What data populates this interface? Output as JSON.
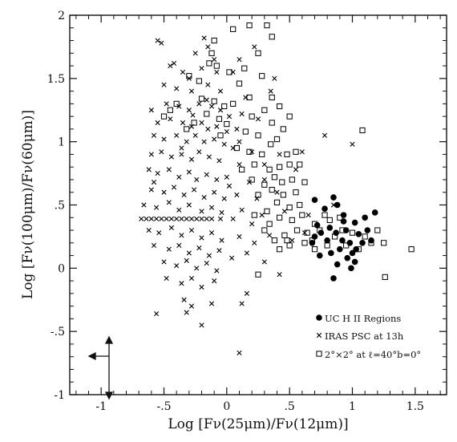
{
  "chart_data": {
    "type": "scatter",
    "xlabel": "Log [Fν(25μm)/Fν(12μm)]",
    "ylabel": "Log [Fν(100μm)/Fν(60μm)]",
    "xlim": [
      -1.25,
      1.75
    ],
    "ylim": [
      -1.0,
      2.0
    ],
    "xticks": [
      {
        "value": -1.0,
        "label": "-1"
      },
      {
        "value": -0.5,
        "label": "-.5"
      },
      {
        "value": 0.0,
        "label": "0"
      },
      {
        "value": 0.5,
        "label": ".5"
      },
      {
        "value": 1.0,
        "label": "1"
      },
      {
        "value": 1.5,
        "label": "1.5"
      }
    ],
    "yticks": [
      {
        "value": -1.0,
        "label": "-1"
      },
      {
        "value": -0.5,
        "label": "-.5"
      },
      {
        "value": 0.0,
        "label": "0"
      },
      {
        "value": 0.5,
        "label": ".5"
      },
      {
        "value": 1.0,
        "label": "1"
      },
      {
        "value": 1.5,
        "label": "1.5"
      },
      {
        "value": 2.0,
        "label": "2"
      }
    ],
    "grid": false,
    "legend_position": "bottom-right",
    "series": [
      {
        "name": "UC H II Regions",
        "marker": "filled-circle",
        "color": "#000000",
        "points": [
          [
            0.7,
            0.54
          ],
          [
            0.78,
            0.47
          ],
          [
            0.85,
            0.56
          ],
          [
            0.88,
            0.5
          ],
          [
            0.93,
            0.37
          ],
          [
            0.72,
            0.34
          ],
          [
            0.82,
            0.32
          ],
          [
            0.95,
            0.3
          ],
          [
            1.02,
            0.36
          ],
          [
            1.1,
            0.4
          ],
          [
            1.18,
            0.44
          ],
          [
            0.75,
            0.28
          ],
          [
            0.8,
            0.22
          ],
          [
            0.87,
            0.28
          ],
          [
            0.92,
            0.22
          ],
          [
            0.98,
            0.2
          ],
          [
            1.05,
            0.27
          ],
          [
            1.12,
            0.3
          ],
          [
            1.15,
            0.22
          ],
          [
            0.7,
            0.25
          ],
          [
            0.74,
            0.1
          ],
          [
            0.83,
            0.12
          ],
          [
            0.9,
            0.15
          ],
          [
            0.96,
            0.08
          ],
          [
            1.03,
            0.15
          ],
          [
            1.08,
            0.2
          ],
          [
            0.88,
            0.03
          ],
          [
            0.99,
            0.0
          ],
          [
            1.02,
            0.05
          ],
          [
            0.85,
            -0.08
          ],
          [
            0.68,
            0.2
          ],
          [
            0.93,
            0.42
          ],
          [
            1.0,
            0.12
          ]
        ]
      },
      {
        "name": "IRAS PSC at 13h",
        "marker": "cross",
        "color": "#000000",
        "points": [
          [
            -0.55,
            1.8
          ],
          [
            -0.52,
            1.78
          ],
          [
            -0.18,
            1.82
          ],
          [
            -0.15,
            1.75
          ],
          [
            -0.25,
            1.7
          ],
          [
            -0.1,
            1.65
          ],
          [
            0.22,
            1.75
          ],
          [
            0.1,
            1.65
          ],
          [
            -0.45,
            1.6
          ],
          [
            -0.35,
            1.55
          ],
          [
            -0.3,
            1.5
          ],
          [
            -0.2,
            1.58
          ],
          [
            -0.08,
            1.55
          ],
          [
            0.05,
            1.55
          ],
          [
            0.38,
            1.5
          ],
          [
            -0.5,
            1.45
          ],
          [
            -0.4,
            1.42
          ],
          [
            -0.28,
            1.4
          ],
          [
            -0.15,
            1.45
          ],
          [
            -0.05,
            1.4
          ],
          [
            0.15,
            1.35
          ],
          [
            0.35,
            1.4
          ],
          [
            -0.6,
            1.25
          ],
          [
            -0.48,
            1.3
          ],
          [
            -0.38,
            1.28
          ],
          [
            -0.3,
            1.25
          ],
          [
            -0.22,
            1.3
          ],
          [
            -0.12,
            1.28
          ],
          [
            -0.05,
            1.25
          ],
          [
            0.02,
            1.2
          ],
          [
            0.12,
            1.22
          ],
          [
            0.25,
            1.18
          ],
          [
            -0.55,
            1.15
          ],
          [
            -0.45,
            1.18
          ],
          [
            -0.35,
            1.15
          ],
          [
            -0.28,
            1.12
          ],
          [
            -0.2,
            1.15
          ],
          [
            -0.15,
            1.1
          ],
          [
            -0.08,
            1.12
          ],
          [
            0.0,
            1.08
          ],
          [
            0.08,
            1.1
          ],
          [
            -0.58,
            1.05
          ],
          [
            -0.5,
            1.02
          ],
          [
            -0.4,
            1.05
          ],
          [
            -0.32,
            1.0
          ],
          [
            -0.25,
            1.05
          ],
          [
            -0.18,
            1.0
          ],
          [
            -0.1,
            1.02
          ],
          [
            -0.02,
            0.98
          ],
          [
            0.05,
            0.95
          ],
          [
            0.2,
            0.92
          ],
          [
            0.42,
            0.9
          ],
          [
            0.6,
            0.92
          ],
          [
            0.78,
            1.05
          ],
          [
            1.0,
            0.98
          ],
          [
            -0.6,
            0.9
          ],
          [
            -0.52,
            0.92
          ],
          [
            -0.44,
            0.88
          ],
          [
            -0.36,
            0.9
          ],
          [
            -0.28,
            0.86
          ],
          [
            -0.22,
            0.92
          ],
          [
            -0.14,
            0.88
          ],
          [
            -0.06,
            0.85
          ],
          [
            0.1,
            0.82
          ],
          [
            -0.62,
            0.78
          ],
          [
            -0.55,
            0.75
          ],
          [
            -0.46,
            0.78
          ],
          [
            -0.38,
            0.72
          ],
          [
            -0.3,
            0.76
          ],
          [
            -0.24,
            0.7
          ],
          [
            -0.16,
            0.74
          ],
          [
            -0.08,
            0.7
          ],
          [
            0.0,
            0.72
          ],
          [
            0.18,
            0.68
          ],
          [
            0.3,
            0.7
          ],
          [
            -0.6,
            0.62
          ],
          [
            -0.5,
            0.6
          ],
          [
            -0.42,
            0.64
          ],
          [
            -0.34,
            0.58
          ],
          [
            -0.26,
            0.62
          ],
          [
            -0.18,
            0.56
          ],
          [
            -0.1,
            0.6
          ],
          [
            -0.02,
            0.55
          ],
          [
            0.08,
            0.58
          ],
          [
            0.24,
            0.55
          ],
          [
            0.4,
            0.6
          ],
          [
            -0.66,
            0.5
          ],
          [
            -0.56,
            0.48
          ],
          [
            -0.46,
            0.52
          ],
          [
            -0.38,
            0.46
          ],
          [
            -0.3,
            0.5
          ],
          [
            -0.2,
            0.45
          ],
          [
            -0.12,
            0.48
          ],
          [
            -0.04,
            0.44
          ],
          [
            0.12,
            0.46
          ],
          [
            0.28,
            0.42
          ],
          [
            0.46,
            0.45
          ],
          [
            -0.68,
            0.39
          ],
          [
            -0.64,
            0.39
          ],
          [
            -0.6,
            0.39
          ],
          [
            -0.56,
            0.39
          ],
          [
            -0.52,
            0.39
          ],
          [
            -0.48,
            0.39
          ],
          [
            -0.44,
            0.39
          ],
          [
            -0.4,
            0.39
          ],
          [
            -0.36,
            0.39
          ],
          [
            -0.32,
            0.39
          ],
          [
            -0.28,
            0.39
          ],
          [
            -0.24,
            0.39
          ],
          [
            -0.2,
            0.39
          ],
          [
            -0.16,
            0.39
          ],
          [
            -0.12,
            0.39
          ],
          [
            -0.05,
            0.39
          ],
          [
            0.05,
            0.39
          ],
          [
            -0.62,
            0.3
          ],
          [
            -0.54,
            0.28
          ],
          [
            -0.44,
            0.32
          ],
          [
            -0.36,
            0.26
          ],
          [
            -0.28,
            0.3
          ],
          [
            -0.2,
            0.24
          ],
          [
            -0.12,
            0.28
          ],
          [
            -0.04,
            0.22
          ],
          [
            0.1,
            0.25
          ],
          [
            0.22,
            0.2
          ],
          [
            0.34,
            0.26
          ],
          [
            0.52,
            0.22
          ],
          [
            0.62,
            0.28
          ],
          [
            -0.58,
            0.18
          ],
          [
            -0.46,
            0.15
          ],
          [
            -0.38,
            0.18
          ],
          [
            -0.3,
            0.12
          ],
          [
            -0.22,
            0.16
          ],
          [
            -0.14,
            0.1
          ],
          [
            -0.06,
            0.14
          ],
          [
            0.04,
            0.08
          ],
          [
            0.16,
            0.12
          ],
          [
            -0.5,
            0.05
          ],
          [
            -0.4,
            0.02
          ],
          [
            -0.32,
            0.06
          ],
          [
            -0.24,
            0.0
          ],
          [
            -0.16,
            0.04
          ],
          [
            -0.08,
            -0.02
          ],
          [
            0.3,
            0.05
          ],
          [
            -0.48,
            -0.08
          ],
          [
            -0.36,
            -0.12
          ],
          [
            -0.28,
            -0.08
          ],
          [
            -0.2,
            -0.15
          ],
          [
            -0.1,
            -0.1
          ],
          [
            -0.34,
            -0.25
          ],
          [
            -0.28,
            -0.3
          ],
          [
            -0.12,
            -0.28
          ],
          [
            0.16,
            -0.2
          ],
          [
            0.42,
            -0.05
          ],
          [
            -0.56,
            -0.36
          ],
          [
            -0.32,
            -0.35
          ],
          [
            -0.2,
            -0.45
          ],
          [
            0.12,
            -0.28
          ],
          [
            0.1,
            -0.67
          ],
          [
            0.2,
            0.35
          ],
          [
            0.55,
            0.78
          ],
          [
            0.85,
            0.5
          ],
          [
            0.65,
            0.42
          ],
          [
            0.1,
            1.0
          ],
          [
            -0.42,
            1.62
          ],
          [
            -0.27,
            1.21
          ],
          [
            -0.16,
            1.33
          ],
          [
            -0.36,
            0.95
          ],
          [
            -0.58,
            0.68
          ],
          [
            0.02,
            0.65
          ],
          [
            0.3,
            0.82
          ]
        ]
      },
      {
        "name": "2°×2° at ℓ=40°b=0°",
        "marker": "open-square",
        "color": "#000000",
        "points": [
          [
            0.05,
            1.89
          ],
          [
            0.18,
            1.92
          ],
          [
            0.32,
            1.92
          ],
          [
            0.36,
            1.83
          ],
          [
            -0.1,
            1.8
          ],
          [
            -0.12,
            1.7
          ],
          [
            0.25,
            1.7
          ],
          [
            -0.08,
            1.6
          ],
          [
            -0.14,
            1.62
          ],
          [
            0.02,
            1.55
          ],
          [
            0.14,
            1.58
          ],
          [
            0.28,
            1.52
          ],
          [
            -0.3,
            1.52
          ],
          [
            -0.22,
            1.48
          ],
          [
            0.1,
            1.46
          ],
          [
            0.36,
            1.35
          ],
          [
            0.42,
            1.28
          ],
          [
            0.3,
            1.25
          ],
          [
            0.18,
            1.35
          ],
          [
            0.05,
            1.3
          ],
          [
            -0.02,
            1.28
          ],
          [
            -0.1,
            1.32
          ],
          [
            -0.2,
            1.34
          ],
          [
            -0.4,
            1.3
          ],
          [
            -0.45,
            1.25
          ],
          [
            -0.5,
            1.2
          ],
          [
            0.5,
            1.2
          ],
          [
            0.45,
            1.1
          ],
          [
            0.36,
            1.15
          ],
          [
            0.25,
            1.05
          ],
          [
            0.15,
            1.08
          ],
          [
            0.0,
            1.14
          ],
          [
            -0.06,
            1.18
          ],
          [
            -0.16,
            1.22
          ],
          [
            -0.26,
            1.15
          ],
          [
            -0.32,
            1.1
          ],
          [
            1.08,
            1.09
          ],
          [
            0.55,
            0.92
          ],
          [
            0.48,
            0.9
          ],
          [
            0.35,
            0.98
          ],
          [
            0.28,
            0.9
          ],
          [
            0.18,
            0.92
          ],
          [
            0.08,
            0.95
          ],
          [
            0.5,
            0.82
          ],
          [
            0.42,
            0.8
          ],
          [
            0.34,
            0.78
          ],
          [
            0.22,
            0.82
          ],
          [
            0.12,
            0.78
          ],
          [
            0.52,
            0.7
          ],
          [
            0.44,
            0.68
          ],
          [
            0.38,
            0.72
          ],
          [
            0.3,
            0.66
          ],
          [
            0.2,
            0.7
          ],
          [
            0.55,
            0.6
          ],
          [
            0.45,
            0.58
          ],
          [
            0.36,
            0.62
          ],
          [
            0.25,
            0.58
          ],
          [
            0.58,
            0.5
          ],
          [
            0.5,
            0.48
          ],
          [
            0.4,
            0.52
          ],
          [
            0.32,
            0.45
          ],
          [
            0.6,
            0.42
          ],
          [
            0.52,
            0.38
          ],
          [
            0.42,
            0.4
          ],
          [
            0.34,
            0.35
          ],
          [
            0.7,
            0.35
          ],
          [
            0.64,
            0.28
          ],
          [
            0.56,
            0.3
          ],
          [
            0.46,
            0.26
          ],
          [
            0.38,
            0.22
          ],
          [
            0.62,
            0.2
          ],
          [
            0.5,
            0.18
          ],
          [
            0.42,
            0.15
          ],
          [
            0.82,
            0.38
          ],
          [
            0.78,
            0.42
          ],
          [
            0.9,
            0.4
          ],
          [
            0.92,
            0.3
          ],
          [
            0.74,
            0.3
          ],
          [
            0.68,
            0.22
          ],
          [
            0.8,
            0.18
          ],
          [
            0.86,
            0.25
          ],
          [
            1.0,
            0.28
          ],
          [
            1.1,
            0.25
          ],
          [
            1.2,
            0.3
          ],
          [
            1.15,
            0.2
          ],
          [
            1.05,
            0.15
          ],
          [
            1.25,
            0.2
          ],
          [
            1.47,
            0.15
          ],
          [
            1.26,
            -0.07
          ],
          [
            0.25,
            -0.05
          ],
          [
            0.48,
            0.22
          ],
          [
            0.3,
            0.3
          ],
          [
            0.22,
            0.42
          ],
          [
            0.7,
            0.15
          ],
          [
            0.95,
            0.18
          ],
          [
            0.58,
            0.82
          ],
          [
            0.62,
            0.68
          ],
          [
            0.2,
            1.2
          ],
          [
            -0.05,
            1.05
          ],
          [
            0.4,
            1.02
          ]
        ]
      }
    ]
  }
}
